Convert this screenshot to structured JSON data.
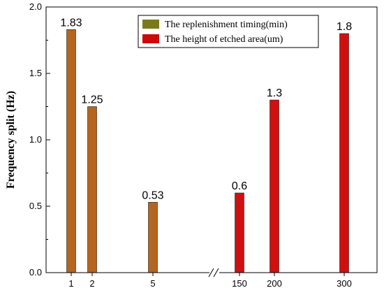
{
  "chart_data": {
    "type": "bar",
    "ylabel": "Frequency split (Hz)",
    "ylim": [
      0.0,
      2.0
    ],
    "y_ticks": [
      "0.0",
      "0.5",
      "1.0",
      "1.5",
      "2.0"
    ],
    "categories": [
      "1",
      "2",
      "5",
      "150",
      "200",
      "300"
    ],
    "axis_break": "//",
    "axis_break_after": "5",
    "legend_position": "top-right",
    "series": [
      {
        "name": "The replenishment timing(min)",
        "color": "#b5651d",
        "swatch_color": "#7a7a1a",
        "points": [
          {
            "category": "1",
            "value": 1.83,
            "label": "1.83"
          },
          {
            "category": "2",
            "value": 1.25,
            "label": "1.25"
          },
          {
            "category": "5",
            "value": 0.53,
            "label": "0.53"
          }
        ]
      },
      {
        "name": "The height of etched  area(um)",
        "color": "#d01010",
        "swatch_color": "#cc0a0a",
        "points": [
          {
            "category": "150",
            "value": 0.6,
            "label": "0.6"
          },
          {
            "category": "200",
            "value": 1.3,
            "label": "1.3"
          },
          {
            "category": "300",
            "value": 1.8,
            "label": "1.8"
          }
        ]
      }
    ]
  }
}
